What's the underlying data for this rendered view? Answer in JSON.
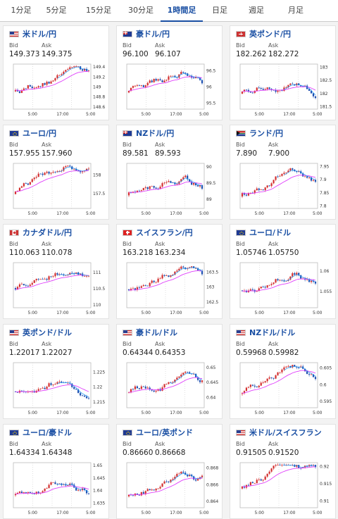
{
  "tabs": [
    {
      "label": "1分足",
      "active": false
    },
    {
      "label": "5分足",
      "active": false
    },
    {
      "label": "15分足",
      "active": false
    },
    {
      "label": "30分足",
      "active": false
    },
    {
      "label": "1時間足",
      "active": true
    },
    {
      "label": "日足",
      "active": false
    },
    {
      "label": "週足",
      "active": false
    },
    {
      "label": "月足",
      "active": false
    }
  ],
  "quote_labels": {
    "bid": "Bid",
    "ask": "Ask"
  },
  "chart_x_labels": [
    "5:00",
    "17:00",
    "5:00"
  ],
  "colors": {
    "up": "#d32f2f",
    "down": "#1e4fb0",
    "ma": "#e040fb",
    "ma2": "#2196f3",
    "link": "#1a4fa3"
  },
  "cards": [
    {
      "name": "米ドル/円",
      "flag": "us",
      "bid": "149.373",
      "ask": "149.375",
      "y_ticks": [
        "149.4",
        "149.2",
        "149",
        "148.8",
        "148.6"
      ],
      "ylim": [
        148.55,
        149.45
      ]
    },
    {
      "name": "豪ドル/円",
      "flag": "au",
      "bid": "96.100",
      "ask": "96.107",
      "y_ticks": [
        "96.5",
        "96",
        "95.5"
      ],
      "ylim": [
        95.3,
        96.7
      ]
    },
    {
      "name": "英ポンド/円",
      "flag": "gb",
      "bid": "182.262",
      "ask": "182.272",
      "y_ticks": [
        "183",
        "182.5",
        "182",
        "181.5"
      ],
      "ylim": [
        181.4,
        183.1
      ]
    },
    {
      "name": "ユーロ/円",
      "flag": "eu",
      "bid": "157.955",
      "ask": "157.960",
      "y_ticks": [
        "158",
        "157.5"
      ],
      "ylim": [
        157.1,
        158.3
      ]
    },
    {
      "name": "NZドル/円",
      "flag": "nz",
      "bid": "89.581",
      "ask": "89.593",
      "y_ticks": [
        "90",
        "89.5",
        "89"
      ],
      "ylim": [
        88.7,
        90.1
      ]
    },
    {
      "name": "ランド/円",
      "flag": "za",
      "bid": "7.890",
      "ask": "7.900",
      "y_ticks": [
        "7.95",
        "7.9",
        "7.85",
        "7.8"
      ],
      "ylim": [
        7.79,
        7.96
      ]
    },
    {
      "name": "カナダドル/円",
      "flag": "ca",
      "bid": "110.063",
      "ask": "110.078",
      "y_ticks": [
        "111",
        "110.5",
        "110"
      ],
      "ylim": [
        109.9,
        111.3
      ]
    },
    {
      "name": "スイスフラン/円",
      "flag": "ch",
      "bid": "163.218",
      "ask": "163.234",
      "y_ticks": [
        "163.5",
        "163",
        "162.5"
      ],
      "ylim": [
        162.3,
        163.8
      ]
    },
    {
      "name": "ユーロ/ドル",
      "flag": "eu",
      "bid": "1.05746",
      "ask": "1.05750",
      "y_ticks": [
        "1.06",
        "1.055"
      ],
      "ylim": [
        1.051,
        1.062
      ]
    },
    {
      "name": "英ポンド/ドル",
      "flag": "us",
      "bid": "1.22017",
      "ask": "1.22027",
      "y_ticks": [
        "1.225",
        "1.22",
        "1.215"
      ],
      "ylim": [
        1.213,
        1.228
      ]
    },
    {
      "name": "豪ドル/ドル",
      "flag": "us",
      "bid": "0.64344",
      "ask": "0.64353",
      "y_ticks": [
        "0.65",
        "0.645",
        "0.64"
      ],
      "ylim": [
        0.6365,
        0.6515
      ]
    },
    {
      "name": "NZドル/ドル",
      "flag": "us",
      "bid": "0.59968",
      "ask": "0.59982",
      "y_ticks": [
        "0.605",
        "0.6",
        "0.595"
      ],
      "ylim": [
        0.593,
        0.6065
      ]
    },
    {
      "name": "ユーロ/豪ドル",
      "flag": "eu",
      "bid": "1.64334",
      "ask": "1.64348",
      "y_ticks": [
        "1.65",
        "1.645",
        "1.64",
        "1.635"
      ],
      "ylim": [
        1.633,
        1.651
      ]
    },
    {
      "name": "ユーロ/英ポンド",
      "flag": "eu",
      "bid": "0.86660",
      "ask": "0.86668",
      "y_ticks": [
        "0.868",
        "0.866",
        "0.864"
      ],
      "ylim": [
        0.8632,
        0.8686
      ]
    },
    {
      "name": "米ドル/スイスフラン",
      "flag": "us",
      "bid": "0.91505",
      "ask": "0.91520",
      "y_ticks": [
        "0.92",
        "0.915",
        "0.91"
      ],
      "ylim": [
        0.908,
        0.921
      ]
    }
  ]
}
